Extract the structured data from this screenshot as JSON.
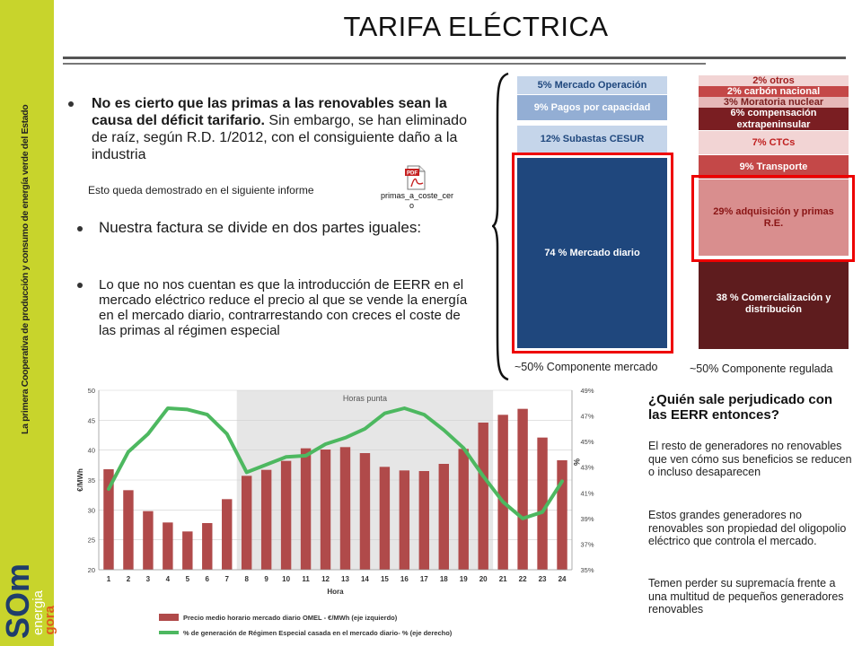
{
  "sidebar": {
    "vertical_text": "La primera Cooperativa de producción y consumo de energía verde del Estado",
    "logo_main": "SOm",
    "logo_energia": "energia",
    "logo_gora": "gora"
  },
  "title": "TARIFA ELÉCTRICA",
  "bullets": {
    "b1_bold": "No es cierto que las primas a las renovables sean la causa del déficit tarifario.",
    "b1_rest": " Sin embargo, se han eliminado de raíz, según R.D. 1/2012, con el consiguiente daño a la industria",
    "note": "Esto queda demostrado en el siguiente informe",
    "pdf_name_line1": "primas_a_coste_cer",
    "pdf_name_line2": "o",
    "b2": "Nuestra factura se divide en dos partes iguales:",
    "b3": "Lo que no nos cuentan es que la introducción de EERR en el mercado eléctrico reduce el precio al que se vende la energía en el mercado diario, contrarrestando con creces el coste de las primas al régimen especial"
  },
  "market_components": {
    "items": [
      "5% Mercado Operación",
      "9% Pagos por capacidad",
      "12% Subastas CESUR",
      "74 % Mercado diario"
    ],
    "caption": "~50% Componente mercado"
  },
  "regulated_components": {
    "items": [
      "2% otros",
      "2% carbón nacional",
      "3% Moratoria nuclear",
      "6% compensación extrapeninsular",
      "7% CTCs",
      "9% Transporte",
      "29% adquisición y primas R.E.",
      "38 % Comercialización y distribución"
    ],
    "caption": "~50% Componente regulada"
  },
  "colors": {
    "sidebar": "#c8d42c",
    "bar": "#b04a4a",
    "line": "#4db860",
    "market_dark": "#1f477d",
    "regulated_dark": "#5e1c1e",
    "highlight": "#e00000"
  },
  "chart_data": {
    "type": "bar",
    "band_label": "Horas punta",
    "xlabel": "Hora",
    "ylabel_left": "€/MWh",
    "ylabel_right": "%",
    "y_left_ticks": [
      "50",
      "45",
      "40",
      "35",
      "30",
      "25",
      "20"
    ],
    "y_right_ticks": [
      "49%",
      "47%",
      "45%",
      "43%",
      "41%",
      "39%",
      "37%",
      "35%"
    ],
    "ylim_left": [
      20,
      50
    ],
    "ylim_right": [
      35,
      49
    ],
    "x": [
      "1",
      "2",
      "3",
      "4",
      "5",
      "6",
      "7",
      "8",
      "9",
      "10",
      "11",
      "12",
      "13",
      "14",
      "15",
      "16",
      "17",
      "18",
      "19",
      "20",
      "21",
      "22",
      "23",
      "24"
    ],
    "series": [
      {
        "name": "Precio medio horario mercado diario OMEL - €/MWh (eje izquierdo)",
        "type": "bar",
        "values": [
          36.8,
          33.3,
          29.8,
          27.9,
          26.4,
          27.8,
          31.8,
          35.7,
          36.7,
          38.2,
          40.3,
          40.1,
          40.5,
          39.5,
          37.2,
          36.6,
          36.5,
          37.7,
          40.2,
          44.6,
          45.9,
          46.9,
          42.1,
          38.3
        ]
      },
      {
        "name": "% de generación de Régimen Especial casada en el mercado diario- % (eje derecho)",
        "type": "line",
        "values": [
          41.3,
          44.2,
          45.6,
          47.6,
          47.5,
          47.1,
          45.6,
          42.6,
          43.2,
          43.8,
          43.9,
          44.8,
          45.3,
          46.0,
          47.2,
          47.6,
          47.1,
          45.9,
          44.5,
          42.3,
          40.3,
          39.0,
          39.5,
          41.9
        ]
      }
    ]
  },
  "right_text": {
    "question": "¿Quién sale perjudicado con las EERR entonces?",
    "p1": "El resto de generadores no renovables que ven cómo sus beneficios se reducen o incluso desaparecen",
    "p2": "Estos grandes generadores no renovables son propiedad del oligopolio eléctrico que controla el mercado.",
    "p3": "Temen perder su supremacía frente a una multitud de pequeños generadores renovables"
  }
}
